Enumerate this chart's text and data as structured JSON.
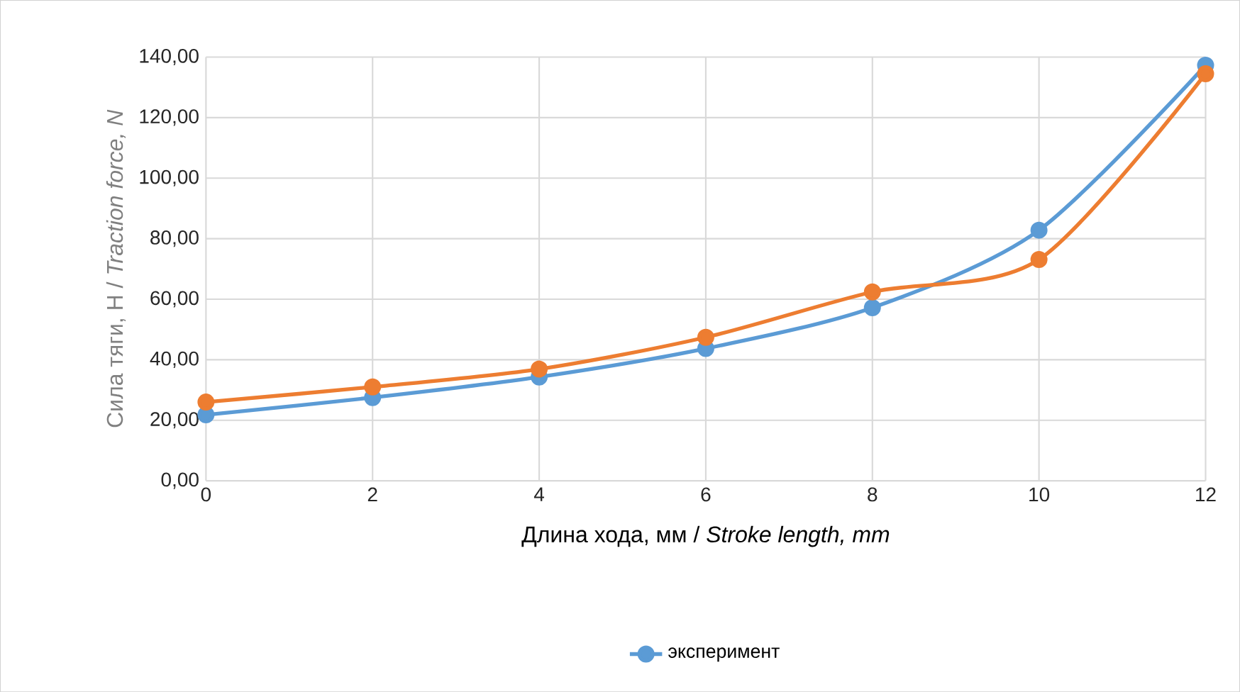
{
  "chart_data": {
    "type": "line",
    "xlabel": "Длина хода, мм / *Stroke length, mm*",
    "ylabel": "Сила тяги, Н / *Traction force, N*",
    "x": [
      0,
      2,
      4,
      6,
      8,
      10,
      12
    ],
    "series": [
      {
        "name": "эксперимент",
        "color": "#5b9bd5",
        "values": [
          21.8,
          27.5,
          34.3,
          43.7,
          57.2,
          82.8,
          137.3
        ]
      },
      {
        "color": "#ed7d31",
        "values": [
          26,
          31,
          36.9,
          47.4,
          62.4,
          73.1,
          134.5
        ]
      }
    ],
    "xlim": [
      0,
      12
    ],
    "ylim": [
      0,
      140
    ],
    "xticks": [
      0,
      2,
      4,
      6,
      8,
      10,
      12
    ],
    "yticks": [
      {
        "value": 0,
        "label": "0,00"
      },
      {
        "value": 20,
        "label": "20,00"
      },
      {
        "value": 40,
        "label": "40,00"
      },
      {
        "value": 60,
        "label": "60,00"
      },
      {
        "value": 80,
        "label": "80,00"
      },
      {
        "value": 100,
        "label": "100,00"
      },
      {
        "value": 120,
        "label": "120,00"
      },
      {
        "value": 140,
        "label": "140,00"
      }
    ],
    "grid": true,
    "legend": "bottom",
    "marker": "circle",
    "line_style": "solid"
  }
}
